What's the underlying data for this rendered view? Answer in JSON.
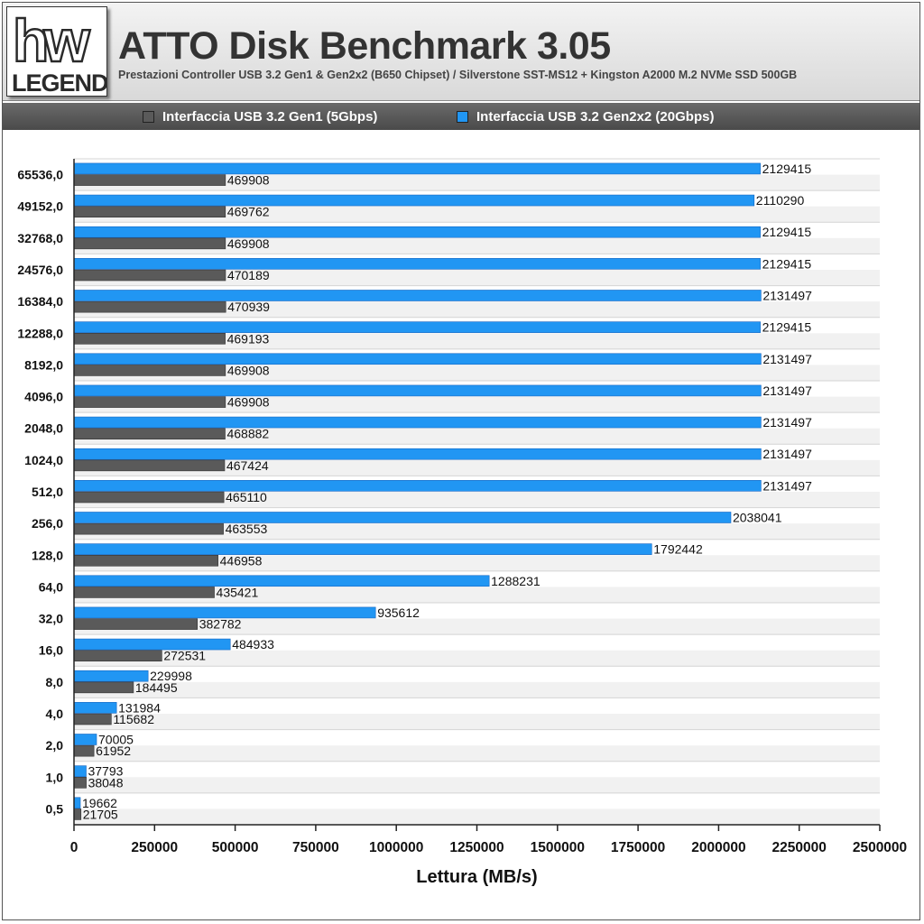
{
  "header": {
    "logo_top": "hw",
    "logo_bottom": "LEGEND",
    "title": "ATTO Disk Benchmark 3.05",
    "subtitle": "Prestazioni Controller USB 3.2 Gen1 & Gen2x2 (B650 Chipset) / Silverstone SST-MS12 + Kingston A2000 M.2 NVMe SSD 500GB"
  },
  "colors": {
    "gen1": "#5a5a5a",
    "gen2x2": "#2196f3"
  },
  "chart_data": {
    "type": "bar",
    "orientation": "horizontal",
    "title": "ATTO Disk Benchmark 3.05",
    "xlabel": "Lettura (MB/s)",
    "ylabel": "",
    "xlim": [
      0,
      2500000
    ],
    "xticks": [
      "0",
      "250000",
      "500000",
      "750000",
      "1000000",
      "1250000",
      "1500000",
      "1750000",
      "2000000",
      "2250000",
      "2500000"
    ],
    "grid": true,
    "legend_position": "top",
    "categories": [
      "65536,0",
      "49152,0",
      "32768,0",
      "24576,0",
      "16384,0",
      "12288,0",
      "8192,0",
      "4096,0",
      "2048,0",
      "1024,0",
      "512,0",
      "256,0",
      "128,0",
      "64,0",
      "32,0",
      "16,0",
      "8,0",
      "4,0",
      "2,0",
      "1,0",
      "0,5"
    ],
    "series": [
      {
        "name": "Interfaccia USB 3.2 Gen1 (5Gbps)",
        "color": "#5a5a5a",
        "values": [
          469908,
          469762,
          469908,
          470189,
          470939,
          469193,
          469908,
          469908,
          468882,
          467424,
          465110,
          463553,
          446958,
          435421,
          382782,
          272531,
          184495,
          115682,
          61952,
          38048,
          21705
        ]
      },
      {
        "name": "Interfaccia USB 3.2 Gen2x2 (20Gbps)",
        "color": "#2196f3",
        "values": [
          2129415,
          2110290,
          2129415,
          2129415,
          2131497,
          2129415,
          2131497,
          2131497,
          2131497,
          2131497,
          2131497,
          2038041,
          1792442,
          1288231,
          935612,
          484933,
          229998,
          131984,
          70005,
          37793,
          19662
        ]
      }
    ]
  }
}
